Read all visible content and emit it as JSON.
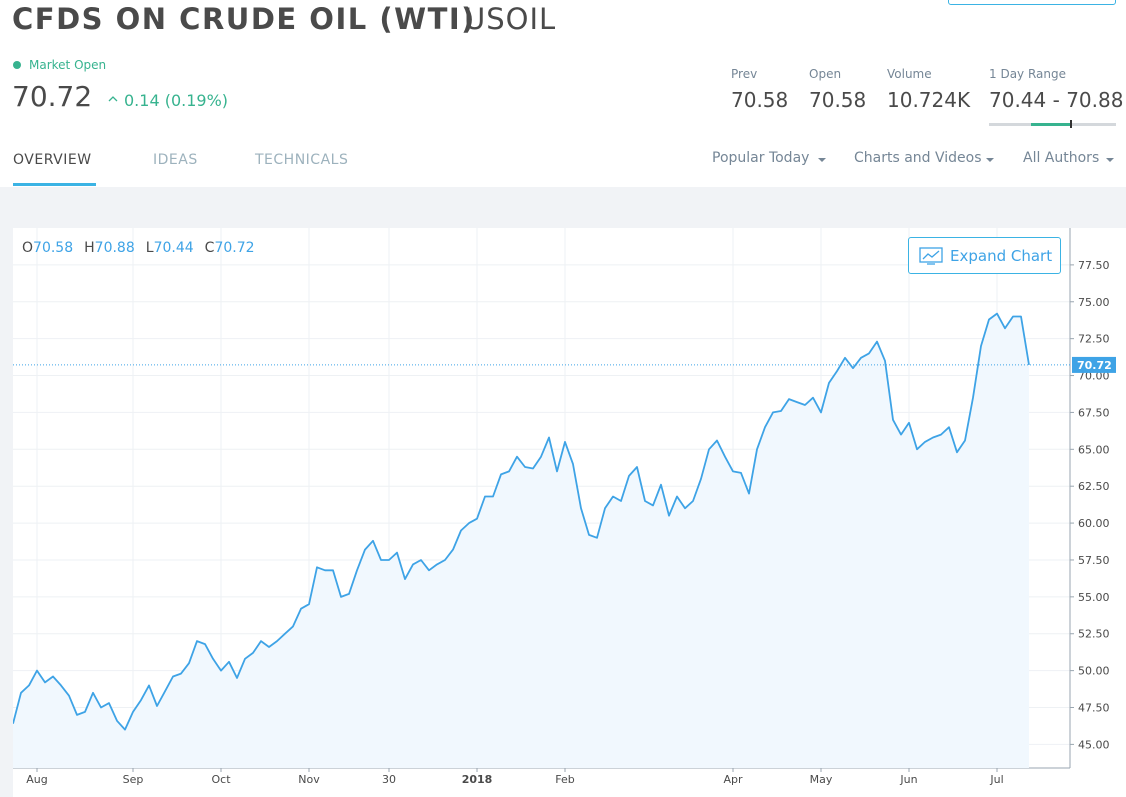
{
  "header": {
    "title": "CFDS ON CRUDE OIL (WTI)",
    "symbol": "USOIL",
    "status": "Market Open",
    "price": "70.72",
    "change": "0.14 (0.19%)",
    "stats": [
      {
        "label": "Prev",
        "value": "70.58"
      },
      {
        "label": "Open",
        "value": "70.58"
      },
      {
        "label": "Volume",
        "value": "10.724K"
      },
      {
        "label": "1 Day Range",
        "value": "70.44 - 70.88"
      }
    ]
  },
  "tabs": [
    "OVERVIEW",
    "IDEAS",
    "TECHNICALS"
  ],
  "filters": [
    "Popular Today",
    "Charts and Videos",
    "All Authors"
  ],
  "expand_button": "Expand Chart",
  "chart_data": {
    "type": "line",
    "color": "#3ea3e6",
    "fill": "#f1f8fe",
    "ohlc": [
      {
        "label": "O",
        "value": "70.58"
      },
      {
        "label": "H",
        "value": "70.88"
      },
      {
        "label": "L",
        "value": "70.44"
      },
      {
        "label": "C",
        "value": "70.72"
      }
    ],
    "categories": [
      null,
      null,
      null,
      "Aug",
      null,
      null,
      null,
      null,
      null,
      null,
      null,
      null,
      null,
      null,
      null,
      "Sep",
      null,
      null,
      null,
      null,
      null,
      null,
      null,
      null,
      null,
      null,
      "Oct",
      null,
      null,
      null,
      null,
      null,
      null,
      null,
      null,
      null,
      null,
      "Nov",
      null,
      null,
      null,
      null,
      null,
      null,
      null,
      null,
      null,
      "30",
      null,
      null,
      null,
      null,
      null,
      null,
      null,
      null,
      null,
      null,
      "2018",
      null,
      null,
      null,
      null,
      null,
      null,
      null,
      null,
      null,
      null,
      "Feb",
      null,
      null,
      null,
      null,
      null,
      null,
      null,
      null,
      null,
      null,
      null,
      null,
      null,
      null,
      null,
      null,
      null,
      null,
      null,
      null,
      "Apr",
      null,
      null,
      null,
      null,
      null,
      null,
      null,
      null,
      null,
      null,
      "May",
      null,
      null,
      null,
      null,
      null,
      null,
      null,
      null,
      null,
      null,
      "Jun",
      null,
      null,
      null,
      null,
      null,
      null,
      null,
      null,
      null,
      null,
      "Jul",
      null,
      null,
      null,
      null
    ],
    "values": [
      46.4,
      48.5,
      49.0,
      50.0,
      49.2,
      49.6,
      49.0,
      48.3,
      47.0,
      47.2,
      48.5,
      47.5,
      47.8,
      46.6,
      46.0,
      47.2,
      48.0,
      49.0,
      47.6,
      48.6,
      49.6,
      49.8,
      50.5,
      52.0,
      51.8,
      50.8,
      50.0,
      50.6,
      49.5,
      50.8,
      51.2,
      52.0,
      51.6,
      52.0,
      52.5,
      53.0,
      54.2,
      54.5,
      57.0,
      56.8,
      56.8,
      55.0,
      55.2,
      56.8,
      58.2,
      58.8,
      57.5,
      57.5,
      58.0,
      56.2,
      57.2,
      57.5,
      56.8,
      57.2,
      57.5,
      58.2,
      59.5,
      60.0,
      60.3,
      61.8,
      61.8,
      63.3,
      63.5,
      64.5,
      63.8,
      63.7,
      64.5,
      65.8,
      63.5,
      65.5,
      64.0,
      61.0,
      59.2,
      59.0,
      61.0,
      61.8,
      61.5,
      63.2,
      63.8,
      61.5,
      61.2,
      62.6,
      60.5,
      61.8,
      61.0,
      61.5,
      63.0,
      65.0,
      65.6,
      64.5,
      63.5,
      63.4,
      62.0,
      65.0,
      66.5,
      67.5,
      67.6,
      68.4,
      68.2,
      68.0,
      68.5,
      67.5,
      69.5,
      70.3,
      71.2,
      70.5,
      71.2,
      71.5,
      72.3,
      71.0,
      67.0,
      66.0,
      66.8,
      65.0,
      65.5,
      65.8,
      66.0,
      66.5,
      64.8,
      65.6,
      68.5,
      72.0,
      73.8,
      74.2,
      73.2,
      74.0,
      74.0,
      70.72
    ],
    "ylim": [
      43.4,
      80.0
    ],
    "yticks": [
      {
        "value": 45,
        "label": "45.00"
      },
      {
        "value": 47.5,
        "label": "47.50"
      },
      {
        "value": 50,
        "label": "50.00"
      },
      {
        "value": 52.5,
        "label": "52.50"
      },
      {
        "value": 55,
        "label": "55.00"
      },
      {
        "value": 57.5,
        "label": "57.50"
      },
      {
        "value": 60,
        "label": "60.00"
      },
      {
        "value": 62.5,
        "label": "62.50"
      },
      {
        "value": 65,
        "label": "65.00"
      },
      {
        "value": 67.5,
        "label": "67.50"
      },
      {
        "value": 70,
        "label": "70.00"
      },
      {
        "value": 72.5,
        "label": "72.50"
      },
      {
        "value": 75,
        "label": "75.00"
      },
      {
        "value": 77.5,
        "label": "77.50"
      }
    ],
    "grid": true
  }
}
